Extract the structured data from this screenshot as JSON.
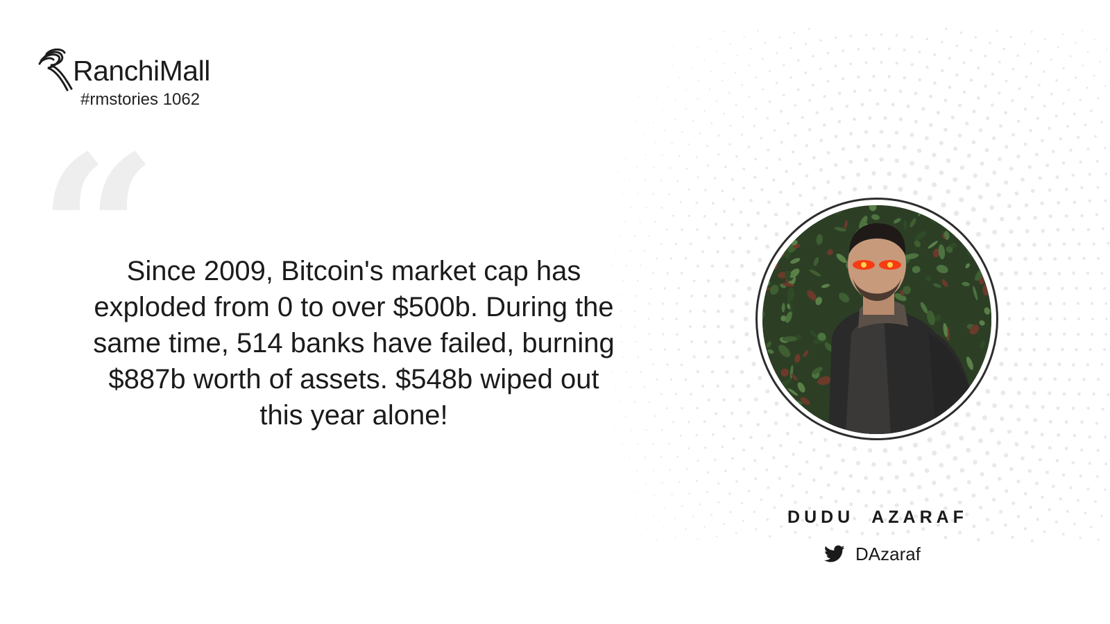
{
  "brand": {
    "name": "RanchiMall",
    "logo_icon": "ranchimall-swirl-logo",
    "story_tag": "#rmstories 1062"
  },
  "quote": {
    "mark_icon": "quotation-mark-icon",
    "text": "Since 2009, Bitcoin's market cap has exploded from 0 to over $500b. During the same time, 514 banks have failed, burning $887b worth of assets. $548b wiped out this year alone!"
  },
  "author": {
    "name": "DUDU  AZARAF",
    "social_icon": "twitter-bird-icon",
    "handle": "DAzaraf"
  },
  "colors": {
    "text": "#1b1b1b",
    "quote_mark": "#eeeeee",
    "dot_pattern": "#e9e9e9",
    "laser_eyes": "#ff2a00"
  }
}
